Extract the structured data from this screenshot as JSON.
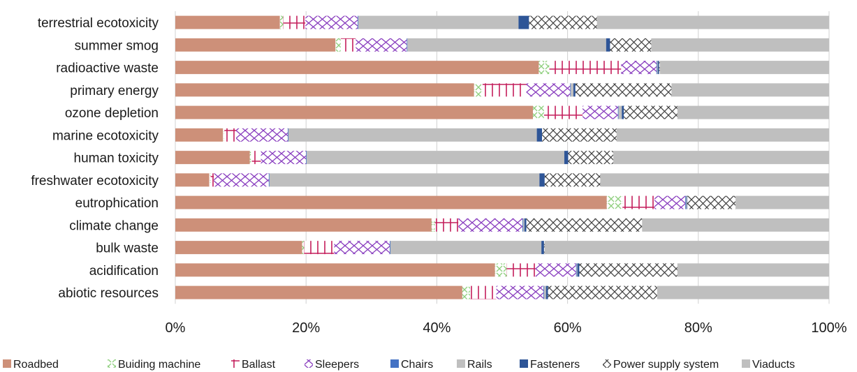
{
  "chart_data": {
    "type": "bar",
    "orientation": "horizontal",
    "stacked": "percent",
    "title": "",
    "xlabel": "",
    "ylabel": "",
    "xlim": [
      0,
      100
    ],
    "x_ticks": [
      "0%",
      "20%",
      "40%",
      "60%",
      "80%",
      "100%"
    ],
    "grid": "vertical",
    "legend_position": "bottom",
    "categories": [
      "terrestrial ecotoxicity",
      "summer smog",
      "radioactive waste",
      "primary energy",
      "ozone depletion",
      "marine ecotoxicity",
      "human toxicity",
      "freshwater ecotoxicity",
      "eutrophication",
      "climate change",
      "bulk waste",
      "acidification",
      "abiotic resources"
    ],
    "series": [
      {
        "name": "Roadbed",
        "color": "#cd9079",
        "pattern": "solid",
        "values": [
          16.0,
          24.5,
          55.6,
          45.7,
          54.7,
          7.3,
          11.4,
          5.2,
          66.0,
          39.2,
          19.4,
          48.9,
          43.9
        ]
      },
      {
        "name": "Buiding machine",
        "color": "#8fcf7e",
        "pattern": "light-cross",
        "values": [
          0.5,
          0.8,
          1.6,
          1.3,
          1.7,
          0.2,
          0.3,
          0.2,
          2.4,
          0.5,
          0.3,
          1.8,
          1.2
        ]
      },
      {
        "name": "Ballast",
        "color": "#c41e5b",
        "pattern": "vertical-bars",
        "values": [
          3.4,
          2.3,
          11.0,
          6.7,
          5.9,
          1.8,
          1.4,
          0.5,
          4.9,
          3.6,
          4.6,
          4.4,
          4.0
        ]
      },
      {
        "name": "Sleepers",
        "color": "#8a3fbf",
        "pattern": "cross",
        "values": [
          8.0,
          7.8,
          5.4,
          6.7,
          5.4,
          7.9,
          6.9,
          8.4,
          4.7,
          9.8,
          8.5,
          6.2,
          7.2
        ]
      },
      {
        "name": "Chairs",
        "color": "#4472c4",
        "pattern": "solid",
        "values": [
          0.1,
          0.1,
          0.1,
          0.1,
          0.1,
          0.1,
          0.1,
          0.1,
          0.1,
          0.1,
          0.1,
          0.1,
          0.1
        ]
      },
      {
        "name": "Rails",
        "color": "#bfbfbf",
        "pattern": "solid",
        "values": [
          24.5,
          30.4,
          0.1,
          0.4,
          0.5,
          38.0,
          39.4,
          41.3,
          0.1,
          0.2,
          23.1,
          0.1,
          0.3
        ]
      },
      {
        "name": "Fasteners",
        "color": "#2e5597",
        "pattern": "solid",
        "values": [
          1.6,
          0.6,
          0.2,
          0.3,
          0.3,
          0.8,
          0.6,
          0.8,
          0.1,
          0.3,
          0.4,
          0.3,
          0.3
        ]
      },
      {
        "name": "Power supply system",
        "color": "#404040",
        "pattern": "dark-cross",
        "values": [
          10.4,
          6.3,
          0.1,
          14.7,
          8.2,
          11.4,
          6.9,
          8.5,
          7.4,
          17.7,
          0.1,
          15.0,
          16.7
        ]
      },
      {
        "name": "Viaducts",
        "color": "#bfbfbf",
        "pattern": "solid",
        "values": [
          35.5,
          27.2,
          25.9,
          24.1,
          23.2,
          32.5,
          33.0,
          35.0,
          14.3,
          28.6,
          43.5,
          23.2,
          26.3
        ]
      }
    ]
  }
}
